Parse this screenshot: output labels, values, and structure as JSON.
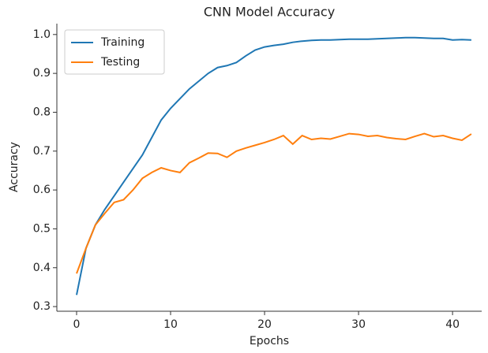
{
  "chart_data": {
    "type": "line",
    "title": "CNN Model Accuracy",
    "xlabel": "Epochs",
    "ylabel": "Accuracy",
    "x": [
      0,
      1,
      2,
      3,
      4,
      5,
      6,
      7,
      8,
      9,
      10,
      11,
      12,
      13,
      14,
      15,
      16,
      17,
      18,
      19,
      20,
      21,
      22,
      23,
      24,
      25,
      26,
      27,
      28,
      29,
      30,
      31,
      32,
      33,
      34,
      35,
      36,
      37,
      38,
      39,
      40,
      41,
      42
    ],
    "series": [
      {
        "name": "Training",
        "color": "#1f77b4",
        "values": [
          0.33,
          0.45,
          0.51,
          0.55,
          0.585,
          0.62,
          0.655,
          0.69,
          0.735,
          0.78,
          0.81,
          0.835,
          0.86,
          0.88,
          0.9,
          0.915,
          0.92,
          0.928,
          0.945,
          0.96,
          0.968,
          0.972,
          0.975,
          0.98,
          0.983,
          0.985,
          0.986,
          0.986,
          0.987,
          0.988,
          0.988,
          0.988,
          0.989,
          0.99,
          0.991,
          0.992,
          0.992,
          0.991,
          0.99,
          0.99,
          0.986,
          0.987,
          0.986
        ]
      },
      {
        "name": "Testing",
        "color": "#ff7f0e",
        "values": [
          0.385,
          0.45,
          0.51,
          0.54,
          0.568,
          0.575,
          0.6,
          0.63,
          0.645,
          0.657,
          0.65,
          0.645,
          0.67,
          0.682,
          0.695,
          0.694,
          0.684,
          0.7,
          0.708,
          0.715,
          0.722,
          0.73,
          0.74,
          0.718,
          0.74,
          0.73,
          0.733,
          0.731,
          0.738,
          0.745,
          0.743,
          0.738,
          0.74,
          0.735,
          0.732,
          0.73,
          0.738,
          0.745,
          0.737,
          0.74,
          0.733,
          0.728,
          0.744
        ]
      }
    ],
    "xlim": [
      -2.1,
      43.1
    ],
    "xticks": [
      0,
      10,
      20,
      30,
      40
    ],
    "ylim": [
      0.288,
      1.028
    ],
    "yticks": [
      0.3,
      0.4,
      0.5,
      0.6,
      0.7,
      0.8,
      0.9,
      {
        "value": 1,
        "label": "1.0"
      }
    ],
    "legend": "upper left"
  }
}
